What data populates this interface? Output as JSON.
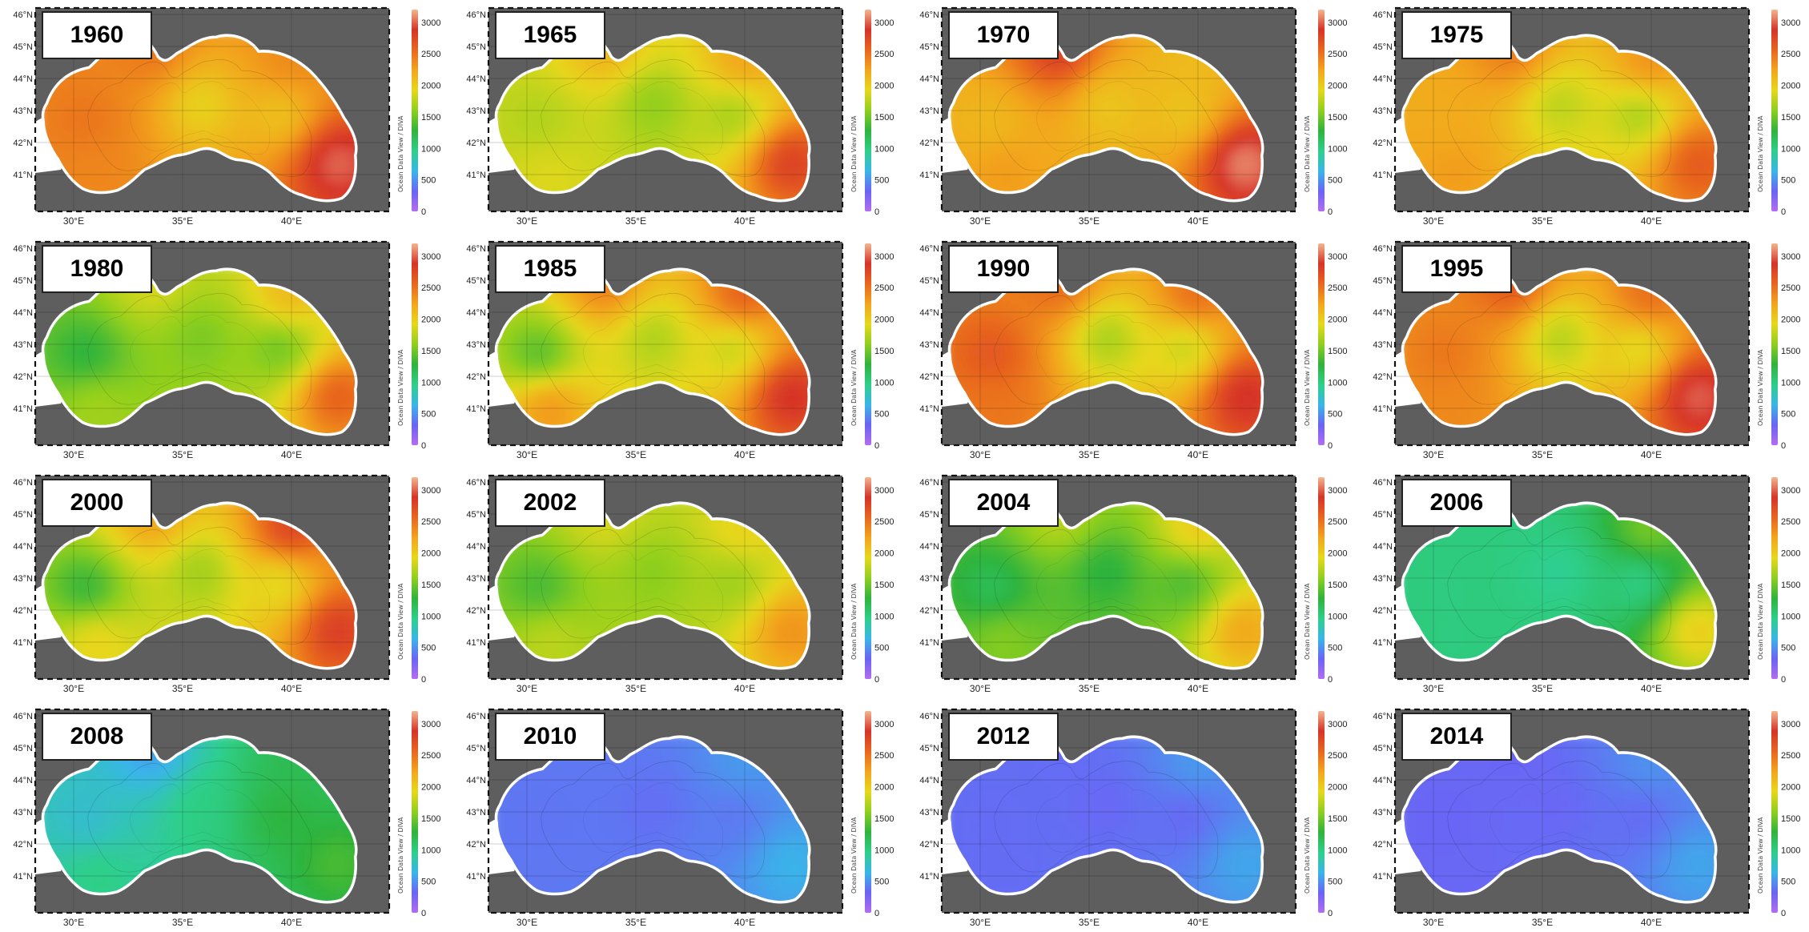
{
  "colorbar": {
    "ticks": [
      "3000",
      "2500",
      "2000",
      "1500",
      "1000",
      "500",
      "0"
    ],
    "vmin": 0,
    "vmax": 3200,
    "side_label": "Ocean Data View / DIVA",
    "colors": [
      "#b36cf0",
      "#6a64f5",
      "#38b6e8",
      "#2ecf8a",
      "#2fb33c",
      "#8fcf1e",
      "#e6d81a",
      "#f3a51c",
      "#e8661e",
      "#d63328",
      "#f2b690"
    ]
  },
  "axes": {
    "lat_labels": [
      "46°N",
      "45°N",
      "44°N",
      "43°N",
      "42°N",
      "41°N"
    ],
    "lon_labels": [
      "30°E",
      "35°E",
      "40°E"
    ]
  },
  "panels": [
    {
      "year": "1960",
      "field": {
        "base": 2300,
        "west": 2500,
        "center": 1900,
        "east": 2000,
        "ne": 2400,
        "se": 3100,
        "sw": 2400,
        "n": 2500
      }
    },
    {
      "year": "1965",
      "field": {
        "base": 1800,
        "west": 1700,
        "center": 1550,
        "east": 1600,
        "ne": 2300,
        "se": 2900,
        "sw": 1900,
        "n": 2200
      }
    },
    {
      "year": "1970",
      "field": {
        "base": 2050,
        "west": 2100,
        "center": 2000,
        "east": 2000,
        "ne": 2100,
        "se": 3200,
        "sw": 2300,
        "n": 2900
      }
    },
    {
      "year": "1975",
      "field": {
        "base": 2100,
        "west": 2200,
        "center": 1700,
        "east": 1600,
        "ne": 2400,
        "se": 2700,
        "sw": 2300,
        "n": 2500
      }
    },
    {
      "year": "1980",
      "field": {
        "base": 1700,
        "west": 1200,
        "center": 1500,
        "east": 1400,
        "ne": 2200,
        "se": 2700,
        "sw": 1700,
        "n": 1900
      }
    },
    {
      "year": "1985",
      "field": {
        "base": 1900,
        "west": 1300,
        "center": 1650,
        "east": 1700,
        "ne": 2700,
        "se": 3000,
        "sw": 2400,
        "n": 2500
      }
    },
    {
      "year": "1990",
      "field": {
        "base": 2100,
        "west": 2700,
        "center": 1600,
        "east": 1700,
        "ne": 2600,
        "se": 3000,
        "sw": 2500,
        "n": 2600
      }
    },
    {
      "year": "1995",
      "field": {
        "base": 2100,
        "west": 2500,
        "center": 1650,
        "east": 1800,
        "ne": 2600,
        "se": 3100,
        "sw": 2400,
        "n": 2700
      }
    },
    {
      "year": "2000",
      "field": {
        "base": 1900,
        "west": 1200,
        "center": 1600,
        "east": 1800,
        "ne": 2900,
        "se": 2900,
        "sw": 2000,
        "n": 2300
      }
    },
    {
      "year": "2002",
      "field": {
        "base": 1750,
        "west": 1300,
        "center": 1550,
        "east": 1600,
        "ne": 2000,
        "se": 2400,
        "sw": 1800,
        "n": 1900
      }
    },
    {
      "year": "2004",
      "field": {
        "base": 1500,
        "west": 1100,
        "center": 1200,
        "east": 1300,
        "ne": 2100,
        "se": 2300,
        "sw": 1600,
        "n": 1800
      }
    },
    {
      "year": "2006",
      "field": {
        "base": 1000,
        "west": 1000,
        "center": 900,
        "east": 900,
        "ne": 1600,
        "se": 2100,
        "sw": 1000,
        "n": 1000
      }
    },
    {
      "year": "2008",
      "field": {
        "base": 850,
        "west": 700,
        "center": 1000,
        "east": 1300,
        "ne": 1200,
        "se": 1400,
        "sw": 1000,
        "n": 500
      }
    },
    {
      "year": "2010",
      "field": {
        "base": 420,
        "west": 380,
        "center": 350,
        "east": 380,
        "ne": 550,
        "se": 650,
        "sw": 400,
        "n": 400
      }
    },
    {
      "year": "2012",
      "field": {
        "base": 380,
        "west": 350,
        "center": 330,
        "east": 320,
        "ne": 550,
        "se": 600,
        "sw": 350,
        "n": 350
      }
    },
    {
      "year": "2014",
      "field": {
        "base": 360,
        "west": 320,
        "center": 330,
        "east": 330,
        "ne": 520,
        "se": 600,
        "sw": 330,
        "n": 320
      }
    }
  ]
}
